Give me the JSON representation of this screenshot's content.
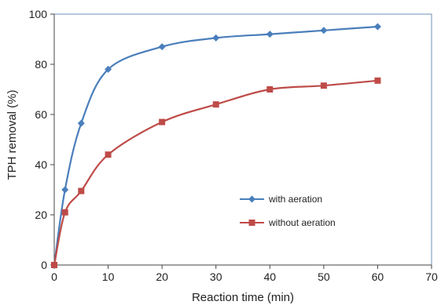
{
  "chart_data": {
    "type": "line",
    "xlabel": "Reaction time (min)",
    "ylabel": "TPH removal (%)",
    "xlim": [
      0,
      70
    ],
    "ylim": [
      0,
      100
    ],
    "xticks": [
      0,
      10,
      20,
      30,
      40,
      50,
      60,
      70
    ],
    "yticks": [
      0,
      20,
      40,
      60,
      80,
      100
    ],
    "grid": false,
    "legend_position": "center-right",
    "series": [
      {
        "name": "with aeration",
        "color": "#4a7ebb",
        "marker": "diamond",
        "x": [
          0,
          2,
          5,
          10,
          20,
          30,
          40,
          50,
          60
        ],
        "y": [
          0,
          30,
          56.5,
          78,
          87,
          90.5,
          92,
          93.5,
          95
        ]
      },
      {
        "name": "without aeration",
        "color": "#be4b48",
        "marker": "square",
        "x": [
          0,
          2,
          5,
          10,
          20,
          30,
          40,
          50,
          60
        ],
        "y": [
          0,
          21,
          29.5,
          44,
          57,
          64,
          70,
          71.5,
          73.5
        ]
      }
    ]
  }
}
